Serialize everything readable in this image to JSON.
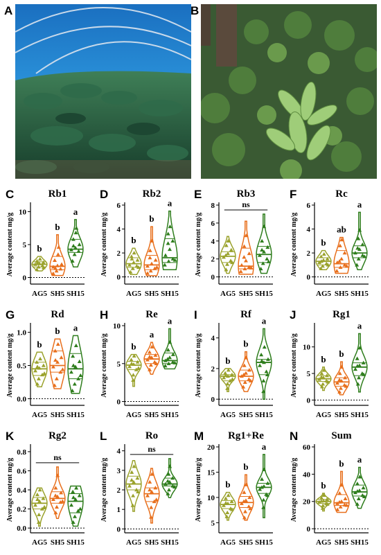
{
  "figure": {
    "photo_a_letter": "A",
    "photo_b_letter": "B",
    "colors": {
      "AG5": "#9aa22c",
      "SH5": "#e86f1c",
      "SH15": "#2e7d1c"
    }
  },
  "chart_data": [
    {
      "panel": "C",
      "type": "violin",
      "title": "Rb1",
      "ylabel": "Average content mg/g",
      "categories": [
        "AG5",
        "SH5",
        "SH15"
      ],
      "ylim": [
        -1,
        11
      ],
      "yticks": [
        0,
        5,
        10
      ],
      "significance": [
        "b",
        "b",
        "a"
      ],
      "series": [
        {
          "name": "AG5",
          "median": 2.0,
          "q1": 1.6,
          "q3": 2.4,
          "min": 1.0,
          "max": 3.2,
          "values": [
            1.2,
            1.6,
            1.8,
            2.0,
            2.1,
            2.3,
            2.5,
            2.8,
            1.5,
            2.2
          ]
        },
        {
          "name": "SH5",
          "median": 1.7,
          "q1": 1.2,
          "q3": 3.2,
          "min": 0.3,
          "max": 6.5,
          "values": [
            0.6,
            1.0,
            1.3,
            1.6,
            1.8,
            2.0,
            2.6,
            3.5,
            4.6,
            1.4
          ]
        },
        {
          "name": "SH15",
          "median": 4.3,
          "q1": 3.8,
          "q3": 5.8,
          "min": 1.6,
          "max": 8.8,
          "values": [
            2.5,
            3.5,
            4.0,
            4.2,
            4.5,
            5.0,
            5.8,
            6.8,
            7.5,
            4.8
          ]
        }
      ]
    },
    {
      "panel": "D",
      "type": "violin",
      "title": "Rb2",
      "ylabel": "Average content mg/g",
      "categories": [
        "AG5",
        "SH5",
        "SH15"
      ],
      "ylim": [
        -0.6,
        6
      ],
      "yticks": [
        0,
        2,
        4,
        6
      ],
      "significance": [
        "b",
        "b",
        "a"
      ],
      "series": [
        {
          "name": "AG5",
          "median": 1.1,
          "q1": 0.8,
          "q3": 1.6,
          "min": 0.2,
          "max": 2.4,
          "values": [
            0.4,
            0.7,
            0.9,
            1.0,
            1.2,
            1.4,
            1.7,
            2.0,
            0.8,
            1.5
          ]
        },
        {
          "name": "SH5",
          "median": 1.0,
          "q1": 0.6,
          "q3": 1.8,
          "min": 0.1,
          "max": 4.2,
          "values": [
            0.3,
            0.5,
            0.7,
            0.9,
            1.1,
            1.4,
            2.2,
            3.0,
            0.8,
            1.6
          ]
        },
        {
          "name": "SH15",
          "median": 1.6,
          "q1": 1.2,
          "q3": 3.2,
          "min": 0.6,
          "max": 5.5,
          "values": [
            1.0,
            1.3,
            1.5,
            1.8,
            2.3,
            3.0,
            3.6,
            4.2,
            1.4,
            2.8
          ]
        }
      ]
    },
    {
      "panel": "E",
      "type": "violin",
      "title": "Rb3",
      "ylabel": "Average content mg/g",
      "categories": [
        "AG5",
        "SH5",
        "SH15"
      ],
      "ylim": [
        -0.8,
        8
      ],
      "yticks": [
        0,
        2,
        4,
        6,
        8
      ],
      "significance": [
        "ns"
      ],
      "series": [
        {
          "name": "AG5",
          "median": 2.3,
          "q1": 1.6,
          "q3": 2.8,
          "min": 0.4,
          "max": 4.5,
          "values": [
            0.8,
            1.4,
            1.8,
            2.2,
            2.6,
            3.0,
            3.5,
            4.0,
            1.6,
            2.4
          ]
        },
        {
          "name": "SH5",
          "median": 1.2,
          "q1": 0.9,
          "q3": 3.2,
          "min": 0.3,
          "max": 6.2,
          "values": [
            0.6,
            0.9,
            1.1,
            1.3,
            1.8,
            2.6,
            3.4,
            4.6,
            1.0,
            2.2
          ]
        },
        {
          "name": "SH15",
          "median": 2.5,
          "q1": 1.6,
          "q3": 3.4,
          "min": 0.4,
          "max": 7.0,
          "values": [
            0.9,
            1.5,
            2.0,
            2.4,
            2.8,
            3.3,
            4.0,
            5.6,
            1.7,
            3.0
          ]
        }
      ]
    },
    {
      "panel": "F",
      "type": "violin",
      "title": "Rc",
      "ylabel": "Average content mg/g",
      "categories": [
        "AG5",
        "SH5",
        "SH15"
      ],
      "ylim": [
        -0.6,
        6
      ],
      "yticks": [
        0,
        2,
        4,
        6
      ],
      "significance": [
        "b",
        "ab",
        "a"
      ],
      "series": [
        {
          "name": "AG5",
          "median": 1.3,
          "q1": 1.0,
          "q3": 1.6,
          "min": 0.6,
          "max": 2.2,
          "values": [
            0.7,
            0.9,
            1.1,
            1.2,
            1.4,
            1.5,
            1.7,
            1.9,
            1.0,
            1.3
          ]
        },
        {
          "name": "SH5",
          "median": 1.1,
          "q1": 0.8,
          "q3": 2.2,
          "min": 0.3,
          "max": 3.3,
          "values": [
            0.5,
            0.8,
            1.0,
            1.2,
            1.5,
            2.0,
            2.6,
            3.1,
            0.9,
            1.3
          ]
        },
        {
          "name": "SH15",
          "median": 2.0,
          "q1": 1.6,
          "q3": 2.6,
          "min": 0.6,
          "max": 5.4,
          "values": [
            1.0,
            1.5,
            1.8,
            2.0,
            2.3,
            2.7,
            3.2,
            3.9,
            1.7,
            2.4
          ]
        }
      ]
    },
    {
      "panel": "G",
      "type": "violin",
      "title": "Rd",
      "ylabel": "Average content mg/g",
      "categories": [
        "AG5",
        "SH5",
        "SH15"
      ],
      "ylim": [
        -0.1,
        1.1
      ],
      "yticks": [
        0.0,
        0.5,
        1.0
      ],
      "significance": [
        "b",
        "b",
        "a"
      ],
      "series": [
        {
          "name": "AG5",
          "median": 0.45,
          "q1": 0.35,
          "q3": 0.55,
          "min": 0.18,
          "max": 0.7,
          "values": [
            0.22,
            0.3,
            0.36,
            0.42,
            0.46,
            0.5,
            0.55,
            0.6,
            0.38,
            0.48
          ]
        },
        {
          "name": "SH5",
          "median": 0.5,
          "q1": 0.4,
          "q3": 0.72,
          "min": 0.15,
          "max": 0.9,
          "values": [
            0.2,
            0.3,
            0.4,
            0.48,
            0.55,
            0.62,
            0.72,
            0.82,
            0.44,
            0.58
          ]
        },
        {
          "name": "SH15",
          "median": 0.45,
          "q1": 0.3,
          "q3": 0.68,
          "min": 0.08,
          "max": 0.95,
          "values": [
            0.12,
            0.22,
            0.3,
            0.4,
            0.48,
            0.56,
            0.64,
            0.8,
            0.35,
            0.5
          ]
        }
      ]
    },
    {
      "panel": "H",
      "type": "violin",
      "title": "Re",
      "ylabel": "Average content mg/g",
      "categories": [
        "AG5",
        "SH5",
        "SH15"
      ],
      "ylim": [
        -0.5,
        10
      ],
      "yticks": [
        0,
        5,
        10
      ],
      "significance": [
        "b",
        "a",
        "a"
      ],
      "series": [
        {
          "name": "AG5",
          "median": 4.8,
          "q1": 4.2,
          "q3": 5.3,
          "min": 2.0,
          "max": 6.2,
          "values": [
            2.8,
            3.5,
            4.2,
            4.6,
            4.9,
            5.2,
            5.5,
            6.0,
            4.4,
            5.0
          ]
        },
        {
          "name": "SH5",
          "median": 5.6,
          "q1": 5.0,
          "q3": 6.2,
          "min": 3.6,
          "max": 7.8,
          "values": [
            4.2,
            4.8,
            5.2,
            5.5,
            5.8,
            6.1,
            6.5,
            7.2,
            5.0,
            5.9
          ]
        },
        {
          "name": "SH15",
          "median": 5.4,
          "q1": 5.0,
          "q3": 6.4,
          "min": 4.3,
          "max": 9.6,
          "values": [
            4.7,
            5.0,
            5.2,
            5.4,
            5.8,
            6.2,
            6.8,
            7.8,
            5.1,
            5.6
          ]
        }
      ]
    },
    {
      "panel": "I",
      "type": "violin",
      "title": "Rf",
      "ylabel": "Average content mg/g",
      "categories": [
        "AG5",
        "SH5",
        "SH15"
      ],
      "ylim": [
        -0.4,
        4.8
      ],
      "yticks": [
        0,
        2,
        4
      ],
      "significance": [
        "b",
        "b",
        "a"
      ],
      "series": [
        {
          "name": "AG5",
          "median": 1.5,
          "q1": 1.2,
          "q3": 1.6,
          "min": 0.5,
          "max": 2.0,
          "values": [
            0.7,
            1.0,
            1.2,
            1.4,
            1.5,
            1.6,
            1.7,
            1.9,
            1.3,
            1.55
          ]
        },
        {
          "name": "SH5",
          "median": 1.5,
          "q1": 1.2,
          "q3": 1.9,
          "min": 0.5,
          "max": 3.1,
          "values": [
            0.8,
            1.1,
            1.3,
            1.5,
            1.7,
            1.9,
            2.2,
            2.7,
            1.2,
            1.6
          ]
        },
        {
          "name": "SH15",
          "median": 2.4,
          "q1": 1.6,
          "q3": 2.6,
          "min": 0.0,
          "max": 4.6,
          "values": [
            0.5,
            1.2,
            1.8,
            2.2,
            2.4,
            2.6,
            2.9,
            3.4,
            1.6,
            2.5
          ]
        }
      ]
    },
    {
      "panel": "J",
      "type": "violin",
      "title": "Rg1",
      "ylabel": "Average content mg/g",
      "categories": [
        "AG5",
        "SH5",
        "SH15"
      ],
      "ylim": [
        -1,
        14
      ],
      "yticks": [
        0,
        5,
        10
      ],
      "significance": [
        "b",
        "b",
        "a"
      ],
      "series": [
        {
          "name": "AG5",
          "median": 4.0,
          "q1": 3.5,
          "q3": 4.6,
          "min": 1.8,
          "max": 6.2,
          "values": [
            2.5,
            3.0,
            3.6,
            3.9,
            4.2,
            4.6,
            5.0,
            5.6,
            3.4,
            4.3
          ]
        },
        {
          "name": "SH5",
          "median": 3.4,
          "q1": 2.6,
          "q3": 4.2,
          "min": 1.0,
          "max": 7.2,
          "values": [
            1.5,
            2.2,
            2.8,
            3.2,
            3.6,
            4.2,
            5.0,
            6.2,
            2.6,
            3.8
          ]
        },
        {
          "name": "SH15",
          "median": 6.2,
          "q1": 4.6,
          "q3": 7.0,
          "min": 1.5,
          "max": 12.5,
          "values": [
            3.0,
            4.2,
            5.0,
            5.8,
            6.5,
            7.0,
            7.8,
            9.8,
            4.8,
            6.4
          ]
        }
      ]
    },
    {
      "panel": "K",
      "type": "violin",
      "title": "Rg2",
      "ylabel": "Average content mg/g",
      "categories": [
        "AG5",
        "SH5",
        "SH15"
      ],
      "ylim": [
        -0.05,
        0.85
      ],
      "yticks": [
        0.0,
        0.2,
        0.4,
        0.6,
        0.8
      ],
      "significance": [
        "ns"
      ],
      "series": [
        {
          "name": "AG5",
          "median": 0.26,
          "q1": 0.2,
          "q3": 0.32,
          "min": 0.02,
          "max": 0.42,
          "values": [
            0.06,
            0.14,
            0.2,
            0.24,
            0.28,
            0.31,
            0.35,
            0.4,
            0.22,
            0.3
          ]
        },
        {
          "name": "SH5",
          "median": 0.31,
          "q1": 0.26,
          "q3": 0.38,
          "min": 0.1,
          "max": 0.64,
          "values": [
            0.16,
            0.22,
            0.27,
            0.3,
            0.33,
            0.37,
            0.42,
            0.55,
            0.28,
            0.34
          ]
        },
        {
          "name": "SH15",
          "median": 0.28,
          "q1": 0.16,
          "q3": 0.36,
          "min": 0.02,
          "max": 0.44,
          "values": [
            0.06,
            0.12,
            0.18,
            0.24,
            0.3,
            0.34,
            0.38,
            0.42,
            0.2,
            0.32
          ]
        }
      ]
    },
    {
      "panel": "L",
      "type": "violin",
      "title": "Ro",
      "ylabel": "Average content mg/g",
      "categories": [
        "AG5",
        "SH5",
        "SH15"
      ],
      "ylim": [
        -0.2,
        4.2
      ],
      "yticks": [
        0,
        1,
        2,
        3,
        4
      ],
      "significance": [
        "ns"
      ],
      "series": [
        {
          "name": "AG5",
          "median": 2.3,
          "q1": 2.0,
          "q3": 2.7,
          "min": 0.9,
          "max": 3.5,
          "values": [
            1.2,
            1.7,
            2.0,
            2.2,
            2.4,
            2.6,
            2.9,
            3.2,
            1.9,
            2.5
          ]
        },
        {
          "name": "SH5",
          "median": 1.8,
          "q1": 1.4,
          "q3": 2.1,
          "min": 0.3,
          "max": 3.1,
          "values": [
            0.6,
            1.1,
            1.4,
            1.7,
            1.9,
            2.1,
            2.4,
            2.8,
            1.5,
            2.0
          ]
        },
        {
          "name": "SH15",
          "median": 2.3,
          "q1": 2.2,
          "q3": 2.6,
          "min": 1.6,
          "max": 3.6,
          "values": [
            1.8,
            2.0,
            2.2,
            2.3,
            2.4,
            2.6,
            2.8,
            3.2,
            2.15,
            2.45
          ]
        }
      ]
    },
    {
      "panel": "M",
      "type": "violin",
      "title": "Rg1+Re",
      "ylabel": "Average content mg/g",
      "categories": [
        "AG5",
        "SH5",
        "SH15"
      ],
      "ylim": [
        3,
        20
      ],
      "yticks": [
        5,
        10,
        15,
        20
      ],
      "significance": [
        "b",
        "b",
        "a"
      ],
      "series": [
        {
          "name": "AG5",
          "median": 8.6,
          "q1": 7.8,
          "q3": 9.4,
          "min": 5.5,
          "max": 11.0,
          "values": [
            6.2,
            7.0,
            7.8,
            8.4,
            8.8,
            9.2,
            9.8,
            10.4,
            7.6,
            8.9
          ]
        },
        {
          "name": "SH5",
          "median": 9.0,
          "q1": 8.0,
          "q3": 10.2,
          "min": 5.5,
          "max": 14.5,
          "values": [
            6.0,
            7.2,
            8.2,
            8.8,
            9.4,
            10.0,
            11.0,
            12.5,
            7.8,
            9.2
          ]
        },
        {
          "name": "SH15",
          "median": 12.0,
          "q1": 10.8,
          "q3": 12.8,
          "min": 6.0,
          "max": 18.5,
          "values": [
            8.0,
            9.5,
            10.6,
            11.6,
            12.2,
            12.8,
            13.6,
            15.5,
            10.4,
            12.0
          ]
        }
      ]
    },
    {
      "panel": "N",
      "type": "violin",
      "title": "Sum",
      "ylabel": "Average content mg/g",
      "categories": [
        "AG5",
        "SH5",
        "SH15"
      ],
      "ylim": [
        -3,
        60
      ],
      "yticks": [
        0,
        20,
        40,
        60
      ],
      "significance": [
        "b",
        "b",
        "a"
      ],
      "series": [
        {
          "name": "AG5",
          "median": 20.0,
          "q1": 18.5,
          "q3": 21.5,
          "min": 13.0,
          "max": 26.0,
          "values": [
            15.0,
            17.0,
            18.5,
            19.5,
            20.5,
            21.5,
            22.5,
            24.5,
            18.0,
            20.2
          ]
        },
        {
          "name": "SH5",
          "median": 19.0,
          "q1": 17.0,
          "q3": 25.0,
          "min": 12.0,
          "max": 42.0,
          "values": [
            14.0,
            16.0,
            17.5,
            18.5,
            20.0,
            22.0,
            26.0,
            32.0,
            17.2,
            19.5
          ]
        },
        {
          "name": "SH15",
          "median": 27.0,
          "q1": 24.0,
          "q3": 32.0,
          "min": 15.0,
          "max": 45.0,
          "values": [
            18.0,
            22.0,
            24.5,
            26.5,
            28.0,
            30.0,
            33.0,
            38.0,
            23.5,
            27.5
          ]
        }
      ]
    }
  ]
}
